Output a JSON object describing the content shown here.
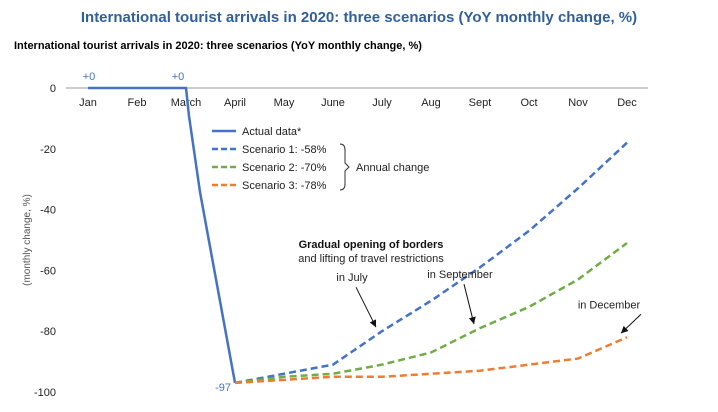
{
  "chart_data": {
    "type": "line",
    "title": "International tourist arrivals in 2020: three scenarios (YoY monthly change, %)",
    "subtitle": "International tourist arrivals in 2020: three scenarios (YoY monthly change, %)",
    "ylabel": "(monthly change, %)",
    "ylim": [
      -100,
      0
    ],
    "yticks": [
      0,
      -20,
      -40,
      -60,
      -80,
      -100
    ],
    "categories": [
      "Jan",
      "Feb",
      "March",
      "April",
      "May",
      "June",
      "July",
      "Aug",
      "Sept",
      "Oct",
      "Nov",
      "Dec"
    ],
    "series": [
      {
        "name": "Actual data*",
        "style": "solid",
        "color": "#4472c4",
        "values": [
          0,
          0,
          0,
          -97,
          null,
          null,
          null,
          null,
          null,
          null,
          null,
          null
        ]
      },
      {
        "name": "Scenario 1:  -58%",
        "style": "dashed",
        "color": "#4472c4",
        "values": [
          null,
          null,
          null,
          -97,
          -94,
          -91,
          -80,
          -70,
          -59,
          -47,
          -33,
          -18
        ]
      },
      {
        "name": "Scenario 2:  -70%",
        "style": "dashed",
        "color": "#70ad47",
        "values": [
          null,
          null,
          null,
          -97,
          -95,
          -94,
          -91,
          -87,
          -79,
          -72,
          -63,
          -51
        ]
      },
      {
        "name": "Scenario 3:  -78%",
        "style": "dashed",
        "color": "#ed7d31",
        "values": [
          null,
          null,
          null,
          -97,
          -96,
          -95,
          -95,
          -94,
          -93,
          -91,
          -89,
          -82
        ]
      }
    ],
    "data_labels": [
      {
        "text": "+0",
        "category": "Jan",
        "value": 0
      },
      {
        "text": "+0",
        "category": "March",
        "value": 0
      },
      {
        "text": "-97",
        "category": "April",
        "value": -97
      }
    ],
    "legend_group_label": "Annual change",
    "legend_position": "center",
    "annotations": {
      "heading": "Gradual opening of borders",
      "subheading": "and lifting of travel restrictions",
      "labels": [
        {
          "text": "in July",
          "category": "July",
          "value": -80
        },
        {
          "text": "in September",
          "category": "Sept",
          "value": -79
        },
        {
          "text": "in December",
          "category": "Dec",
          "value": -82
        }
      ]
    },
    "grid": false
  }
}
